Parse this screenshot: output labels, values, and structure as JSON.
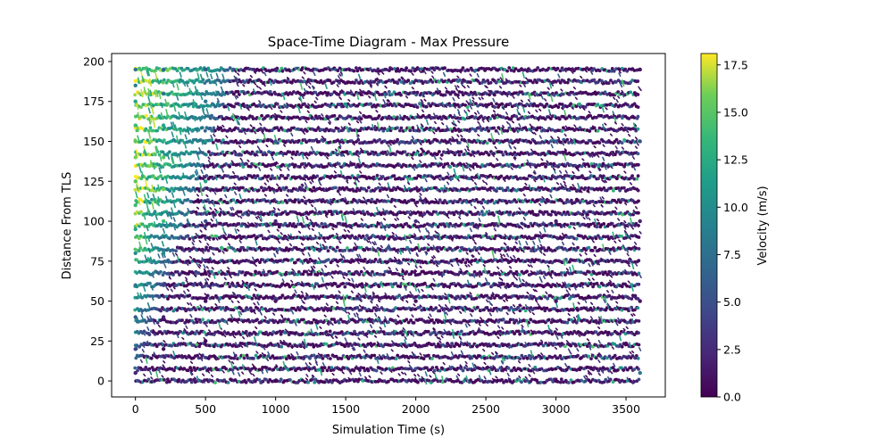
{
  "chart_data": {
    "type": "scatter",
    "title": "Space-Time Diagram - Max Pressure",
    "xlabel": "Simulation Time (s)",
    "ylabel": "Distance From TLS",
    "xlim": [
      -170,
      3780
    ],
    "ylim": [
      -10,
      205
    ],
    "x_ticks": [
      0,
      500,
      1000,
      1500,
      2000,
      2500,
      3000,
      3500
    ],
    "y_ticks": [
      0,
      25,
      50,
      75,
      100,
      125,
      150,
      175,
      200
    ],
    "colorbar": {
      "label": "Velocity (m/s)",
      "range": [
        0.0,
        18.1
      ],
      "ticks": [
        0.0,
        2.5,
        5.0,
        7.5,
        10.0,
        12.5,
        15.0,
        17.5
      ],
      "tick_labels": [
        "0.0",
        "2.5",
        "5.0",
        "7.5",
        "10.0",
        "12.5",
        "15.0",
        "17.5"
      ],
      "colormap": "viridis"
    },
    "summary": {
      "time_range": [
        0,
        3600
      ],
      "distance_range": [
        0,
        195
      ],
      "queue_band_spacing": 7.5,
      "high_velocity_region": "t < 700 s, upper distances; wedge narrowing toward distance 0",
      "steady_state_velocity": "mostly 0-5 m/s with scattered 8-15 m/s streaks"
    },
    "series": [
      {
        "points": [
          [
            0,
            195,
            8
          ],
          [
            0,
            185,
            9
          ],
          [
            0,
            175,
            12
          ],
          [
            0,
            160,
            14
          ],
          [
            0,
            150,
            15
          ],
          [
            0,
            140,
            16
          ],
          [
            0,
            125,
            15
          ],
          [
            0,
            110,
            14
          ],
          [
            0,
            95,
            12
          ],
          [
            0,
            80,
            10
          ],
          [
            0,
            60,
            8
          ],
          [
            0,
            40,
            6
          ],
          [
            0,
            20,
            4
          ],
          [
            0,
            5,
            2
          ],
          [
            200,
            195,
            7
          ],
          [
            200,
            180,
            8
          ],
          [
            200,
            160,
            12
          ],
          [
            200,
            140,
            15
          ],
          [
            200,
            120,
            16
          ],
          [
            200,
            100,
            14
          ],
          [
            200,
            80,
            10
          ],
          [
            200,
            60,
            4
          ],
          [
            200,
            40,
            2
          ],
          [
            200,
            20,
            1
          ],
          [
            500,
            195,
            6
          ],
          [
            500,
            175,
            8
          ],
          [
            500,
            150,
            11
          ],
          [
            500,
            125,
            12
          ],
          [
            500,
            100,
            5
          ],
          [
            500,
            75,
            2
          ],
          [
            500,
            50,
            1
          ],
          [
            500,
            25,
            0.5
          ],
          [
            1000,
            195,
            2
          ],
          [
            1000,
            150,
            6
          ],
          [
            1000,
            100,
            2
          ],
          [
            1000,
            50,
            1
          ],
          [
            1000,
            0,
            0.5
          ],
          [
            2000,
            195,
            1
          ],
          [
            2000,
            150,
            7
          ],
          [
            2000,
            100,
            3
          ],
          [
            2000,
            50,
            1
          ],
          [
            2000,
            0,
            0.5
          ],
          [
            3000,
            195,
            1
          ],
          [
            3000,
            150,
            6
          ],
          [
            3000,
            100,
            2
          ],
          [
            3000,
            50,
            1
          ],
          [
            3000,
            0,
            0.5
          ],
          [
            3600,
            195,
            1
          ],
          [
            3600,
            150,
            5
          ],
          [
            3600,
            100,
            2
          ],
          [
            3600,
            50,
            1
          ],
          [
            3600,
            5,
            8
          ]
        ]
      }
    ]
  }
}
